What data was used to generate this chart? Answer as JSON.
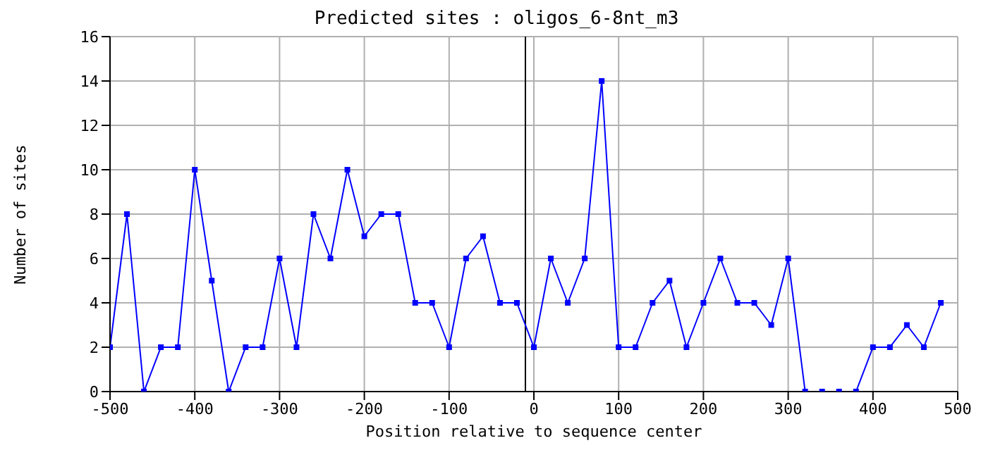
{
  "chart_data": {
    "type": "line",
    "title": "Predicted sites : oligos_6-8nt_m3",
    "xlabel": "Position relative to sequence center",
    "ylabel": "Number of sites",
    "x": [
      -500,
      -480,
      -460,
      -440,
      -420,
      -400,
      -380,
      -360,
      -340,
      -320,
      -300,
      -280,
      -260,
      -240,
      -220,
      -200,
      -180,
      -160,
      -140,
      -120,
      -100,
      -80,
      -60,
      -40,
      -20,
      0,
      20,
      40,
      60,
      80,
      100,
      120,
      140,
      160,
      180,
      200,
      220,
      240,
      260,
      280,
      300,
      320,
      340,
      360,
      380,
      400,
      420,
      440,
      460,
      480
    ],
    "series": [
      {
        "color": "#0000ff",
        "values": [
          2,
          8,
          0,
          2,
          2,
          10,
          5,
          0,
          2,
          2,
          6,
          2,
          8,
          6,
          10,
          7,
          8,
          8,
          4,
          4,
          2,
          6,
          7,
          4,
          4,
          2,
          6,
          4,
          6,
          14,
          2,
          2,
          4,
          5,
          2,
          4,
          6,
          4,
          4,
          3,
          6,
          0,
          0,
          0,
          0,
          2,
          2,
          3,
          2,
          4
        ]
      }
    ],
    "xlim": [
      -500,
      500
    ],
    "xticks": [
      -500,
      -400,
      -300,
      -200,
      -100,
      0,
      100,
      200,
      300,
      400,
      500
    ],
    "ylim": [
      0,
      16
    ],
    "yticks": [
      0,
      2,
      4,
      6,
      8,
      10,
      12,
      14,
      16
    ],
    "ref_lines": [
      {
        "axis": "x",
        "value": -10,
        "color": "#000000"
      }
    ],
    "grid": true,
    "marker": "square",
    "line_style": "solid"
  }
}
